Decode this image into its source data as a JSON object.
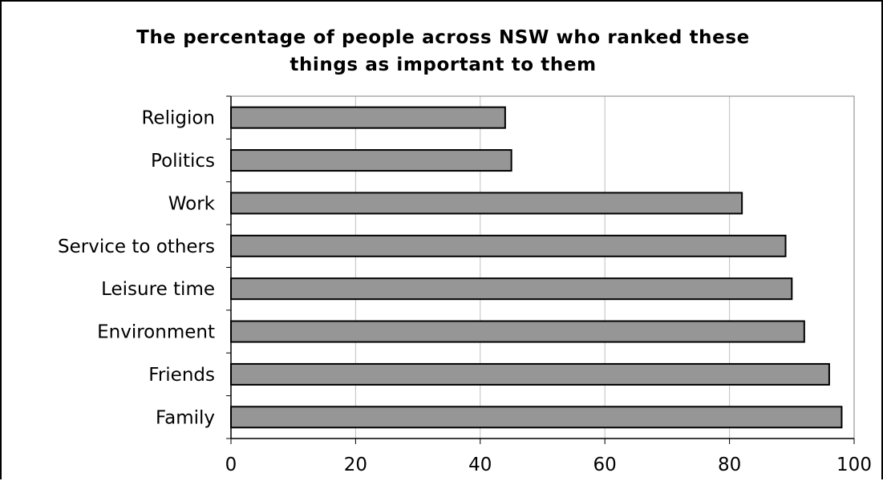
{
  "chart_data": {
    "type": "bar",
    "orientation": "horizontal",
    "title": "The percentage of people across NSW who ranked these\nthings as important to them",
    "xlabel": "",
    "ylabel": "",
    "categories": [
      "Religion",
      "Politics",
      "Work",
      "Service to others",
      "Leisure time",
      "Environment",
      "Friends",
      "Family"
    ],
    "values": [
      44,
      45,
      82,
      89,
      90,
      92,
      96,
      98
    ],
    "xlim": [
      0,
      100
    ],
    "xticks": [
      0,
      20,
      40,
      60,
      80,
      100
    ],
    "grid": "vertical",
    "legend": "none",
    "bar_color": "#969696",
    "bar_edge_color": "#000000",
    "grid_color": "#c0c0c0"
  }
}
